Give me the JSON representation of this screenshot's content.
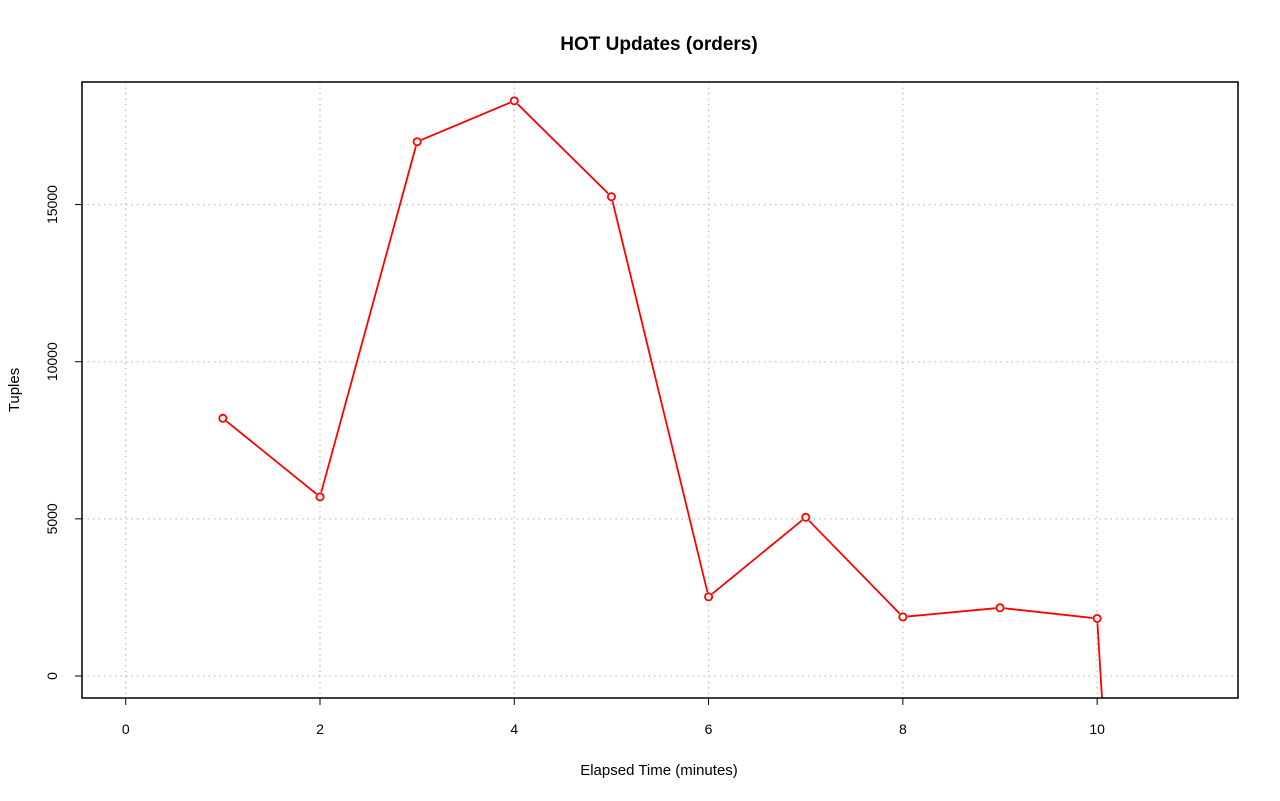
{
  "chart_data": {
    "type": "line",
    "title": "HOT Updates (orders)",
    "xlabel": "Elapsed Time (minutes)",
    "ylabel": "Tuples",
    "x_ticks": [
      0,
      2,
      4,
      6,
      8,
      10
    ],
    "y_ticks": [
      0,
      5000,
      10000,
      15000
    ],
    "xlim": [
      -0.45,
      11.45
    ],
    "ylim": [
      -700,
      18900
    ],
    "grid": true,
    "grid_style": "dotted",
    "series": [
      {
        "color": "#ff0000",
        "marker": "open-circle",
        "x": [
          1,
          2,
          3,
          4,
          5,
          6,
          7,
          8,
          9,
          10,
          10.05
        ],
        "y": [
          8200,
          5700,
          17000,
          18300,
          15250,
          2520,
          5050,
          1880,
          2170,
          1830,
          -700
        ]
      }
    ]
  }
}
